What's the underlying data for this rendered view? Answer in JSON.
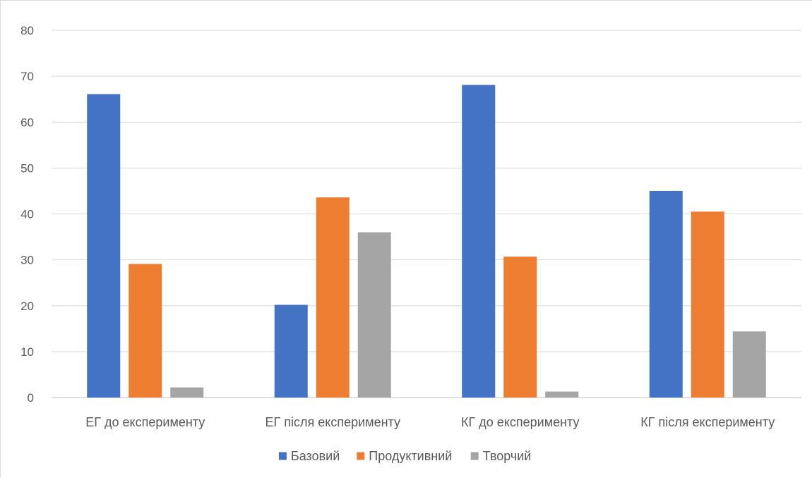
{
  "chart_data": {
    "type": "bar",
    "title": "",
    "xlabel": "",
    "ylabel": "",
    "ylim": [
      0,
      80
    ],
    "yticks": [
      0,
      10,
      20,
      30,
      40,
      50,
      60,
      70,
      80
    ],
    "grid": true,
    "legend_position": "bottom",
    "categories": [
      "ЕГ до експерименту",
      "ЕГ після експерименту",
      "КГ до експерименту",
      "КГ після експерименту"
    ],
    "series": [
      {
        "name": "Базовий",
        "color": "#4472c4",
        "values": [
          66.1,
          20.2,
          68.1,
          45.0
        ]
      },
      {
        "name": "Продуктивний",
        "color": "#ed7d31",
        "values": [
          29.1,
          43.6,
          30.7,
          40.5
        ]
      },
      {
        "name": "Творчий",
        "color": "#a5a5a5",
        "values": [
          2.2,
          36.0,
          1.3,
          14.4
        ]
      }
    ]
  }
}
